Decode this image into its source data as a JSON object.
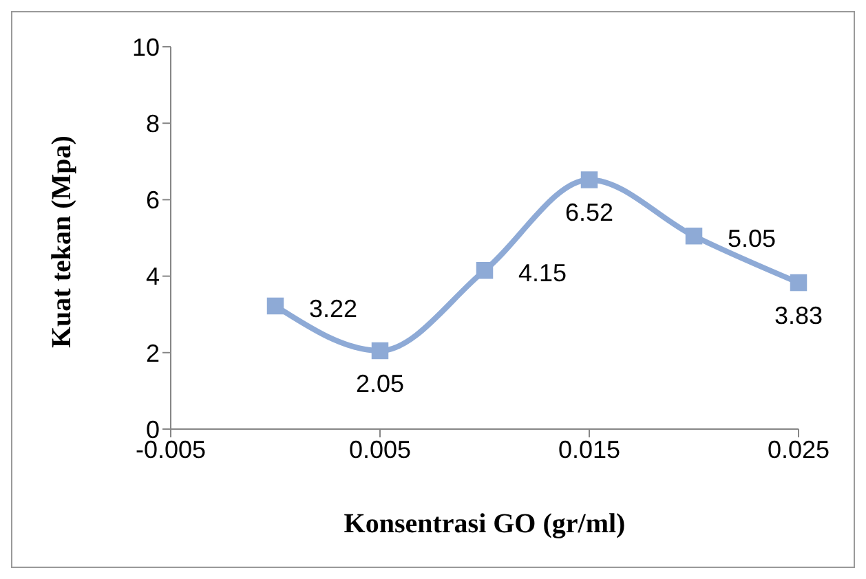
{
  "chart_data": {
    "type": "line",
    "xlabel": "Konsentrasi GO (gr/ml)",
    "ylabel": "Kuat tekan (Mpa)",
    "x": [
      0,
      0.005,
      0.01,
      0.015,
      0.02,
      0.025
    ],
    "series": [
      {
        "color": "#8eaad6",
        "values": [
          3.22,
          2.05,
          4.15,
          6.52,
          5.05,
          3.83
        ]
      }
    ],
    "xlim": [
      -0.005,
      0.025
    ],
    "xticks": [
      -0.005,
      0.005,
      0.015,
      0.025
    ],
    "ylim": [
      0,
      10
    ],
    "yticks": [
      0,
      2,
      4,
      6,
      8,
      10
    ],
    "grid": false,
    "legend": false,
    "marker": "square",
    "line_style": "solid",
    "data_labels": true
  }
}
